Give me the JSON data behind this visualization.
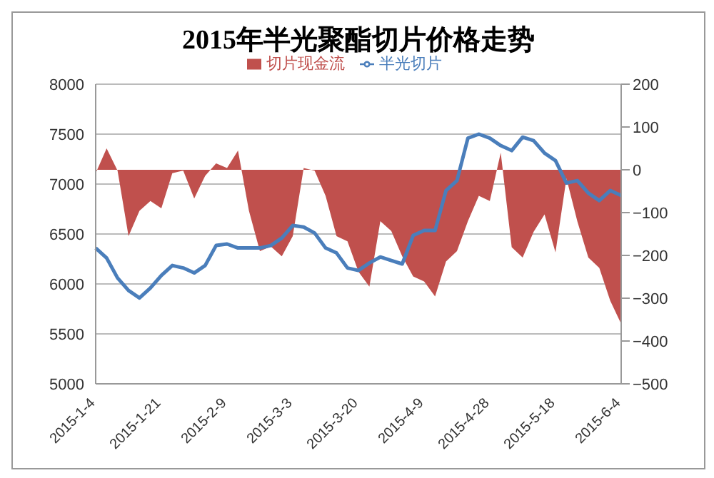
{
  "chart_data": {
    "type": "area",
    "title": "2015年半光聚酯切片价格走势",
    "categories": [
      "2015-1-4",
      null,
      null,
      null,
      null,
      null,
      "2015-1-21",
      null,
      null,
      null,
      null,
      null,
      "2015-2-9",
      null,
      null,
      null,
      null,
      null,
      "2015-3-3",
      null,
      null,
      null,
      null,
      null,
      "2015-3-20",
      null,
      null,
      null,
      null,
      null,
      "2015-4-9",
      null,
      null,
      null,
      null,
      null,
      "2015-4-28",
      null,
      null,
      null,
      null,
      null,
      "2015-5-18",
      null,
      null,
      null,
      null,
      null,
      "2015-6-4"
    ],
    "series": [
      {
        "name": "切片现金流",
        "axis": "y2",
        "color": "#c0504d",
        "values": [
          -8,
          50,
          -2,
          -155,
          -96,
          -73,
          -90,
          -8,
          -2,
          -67,
          -14,
          15,
          4,
          45,
          -96,
          -190,
          -179,
          -202,
          -155,
          4,
          -2,
          -61,
          -155,
          -167,
          -238,
          -273,
          -120,
          -143,
          -202,
          -249,
          -261,
          -296,
          -214,
          -190,
          -120,
          -61,
          -73,
          40,
          -181,
          -205,
          -145,
          -104,
          -193,
          -20,
          -121,
          -205,
          -229,
          -306,
          -360
        ]
      },
      {
        "name": "半光切片",
        "type": "line",
        "color": "#4a7ebb",
        "values": [
          6360,
          6260,
          6060,
          5935,
          5860,
          5960,
          6085,
          6185,
          6160,
          6110,
          6185,
          6385,
          6400,
          6360,
          6360,
          6360,
          6385,
          6460,
          6585,
          6570,
          6510,
          6360,
          6310,
          6160,
          6135,
          6210,
          6270,
          6235,
          6200,
          6485,
          6535,
          6535,
          6935,
          7035,
          7460,
          7500,
          7460,
          7385,
          7335,
          7470,
          7435,
          7310,
          7235,
          7010,
          7035,
          6910,
          6835,
          6935,
          6885
        ]
      }
    ],
    "ylim": [
      5000,
      8000
    ],
    "yticks": [
      5000,
      5500,
      6000,
      6500,
      7000,
      7500,
      8000
    ],
    "y2lim": [
      -500,
      200
    ],
    "y2ticks": [
      -500,
      -400,
      -300,
      -200,
      -100,
      0,
      100,
      200
    ],
    "grid": "y",
    "legend": "top",
    "marker": "none"
  }
}
